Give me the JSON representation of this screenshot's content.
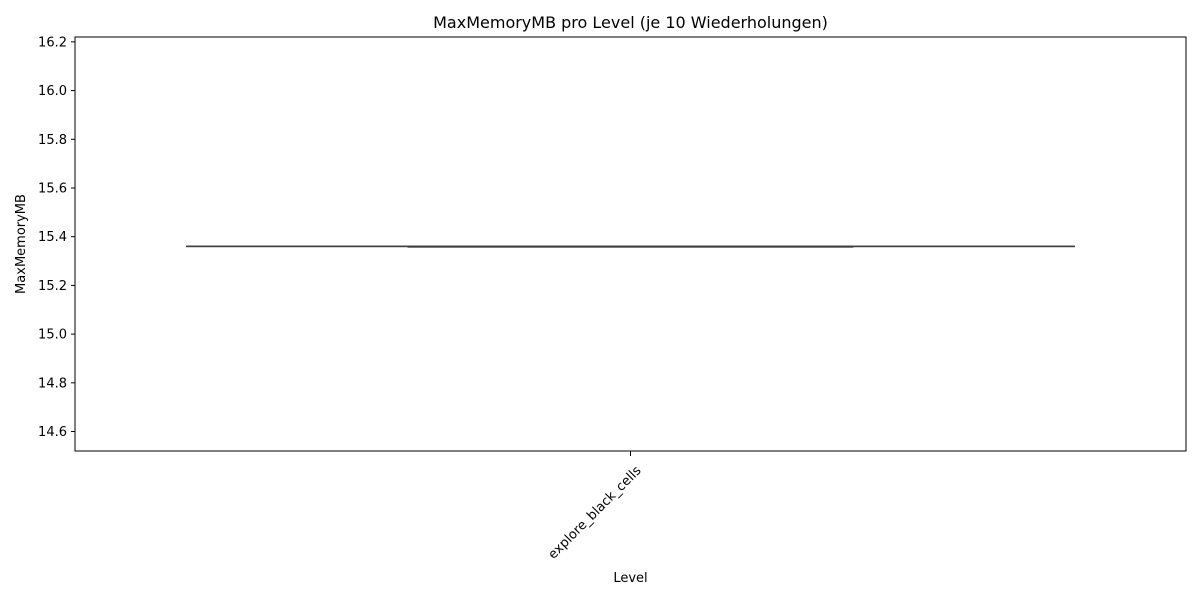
{
  "chart_data": {
    "type": "box",
    "title": "MaxMemoryMB pro Level (je 10 Wiederholungen)",
    "xlabel": "Level",
    "ylabel": "MaxMemoryMB",
    "categories": [
      "explore_black_cells"
    ],
    "series": [
      {
        "category": "explore_black_cells",
        "min": 15.36,
        "q1": 15.36,
        "median": 15.36,
        "q3": 15.36,
        "max": 15.36
      }
    ],
    "ylim": [
      14.52,
      16.22
    ],
    "yticks": [
      "14.6",
      "14.8",
      "15.0",
      "15.2",
      "15.4",
      "15.6",
      "15.8",
      "16.0",
      "16.2"
    ],
    "grid": false,
    "line_color": "#3f3f3f"
  }
}
